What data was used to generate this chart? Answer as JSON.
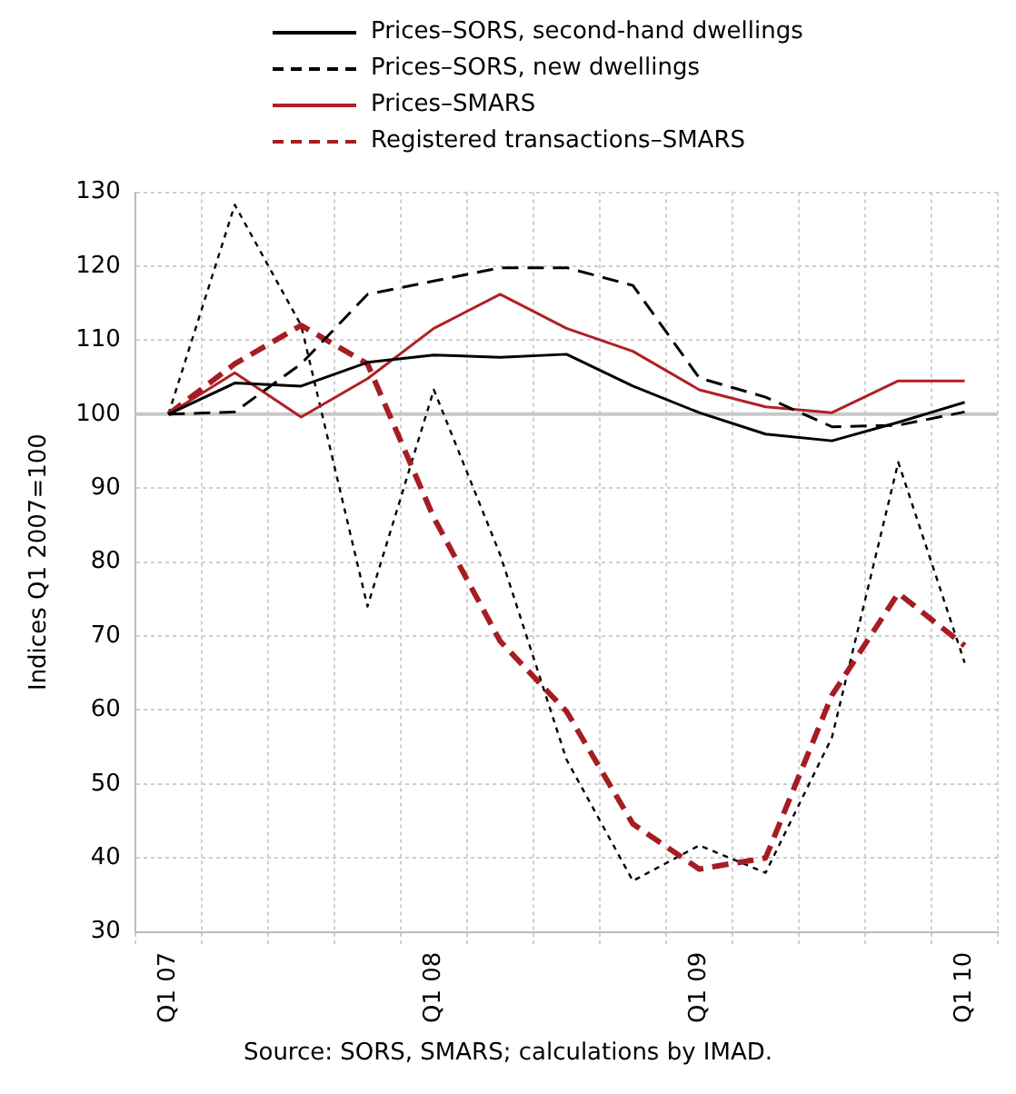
{
  "chart_data": {
    "type": "line",
    "ylabel": "Indices Q1 2007=100",
    "categories": [
      "Q1 07",
      null,
      null,
      null,
      "Q1 08",
      null,
      null,
      null,
      "Q1 09",
      null,
      null,
      null,
      "Q1 10"
    ],
    "series": [
      {
        "name": "Prices–SORS, second-hand dwellings",
        "color": "#000000",
        "line_style": "solid",
        "values": [
          100,
          104.2,
          103.8,
          107,
          108,
          107.7,
          108.1,
          103.8,
          100.2,
          97.3,
          96.4,
          98.9,
          101.6
        ]
      },
      {
        "name": "Prices–SORS, new dwellings",
        "color": "#000000",
        "line_style": "dashed",
        "values": [
          100,
          100.3,
          106.8,
          116.2,
          118,
          119.8,
          119.8,
          117.4,
          104.9,
          102.3,
          98.3,
          98.5,
          100.3
        ]
      },
      {
        "name": "Prices–SMARS",
        "color": "#b02025",
        "line_style": "solid",
        "values": [
          100,
          105.6,
          99.6,
          104.8,
          111.6,
          116.2,
          111.6,
          108.5,
          103.3,
          101,
          100.2,
          104.5,
          104.5
        ]
      },
      {
        "name": "Registered transactions–SMARS",
        "color": "#a51d22",
        "line_style": "dashed",
        "values": [
          100,
          106.8,
          112,
          106.8,
          86,
          69.3,
          59.8,
          44.6,
          38.5,
          40,
          62,
          75.8,
          68.7
        ]
      },
      {
        "color": "#000000",
        "line_style": "dotted",
        "values": [
          100,
          128.3,
          112,
          74,
          103.3,
          81,
          53.3,
          36.9,
          41.7,
          38,
          56.3,
          93.5,
          66.4
        ]
      }
    ],
    "ylim": [
      30,
      130
    ],
    "yticks": [
      30,
      40,
      50,
      60,
      70,
      80,
      90,
      100,
      110,
      120,
      130
    ],
    "grid": true,
    "legend": "top",
    "marker": "none",
    "ref_lines": [
      {
        "axis": "y",
        "value": 100,
        "color": "#c8c8c8"
      }
    ],
    "annotations": [
      "Source: SORS, SMARS; calculations by IMAD."
    ]
  }
}
